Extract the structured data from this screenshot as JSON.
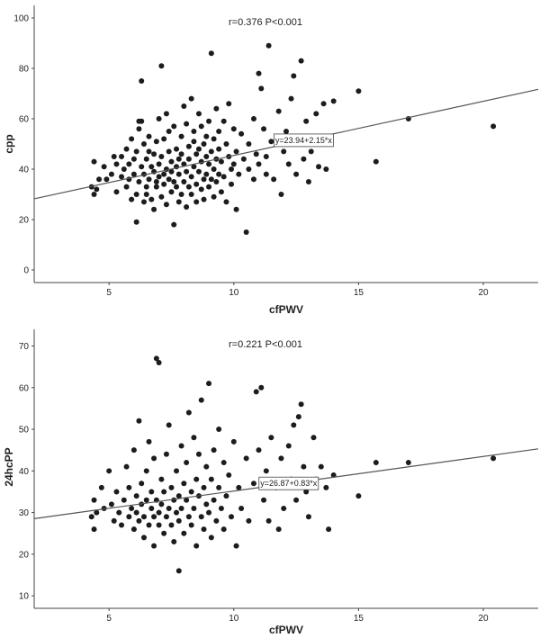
{
  "chart_data": [
    {
      "type": "scatter",
      "xlabel": "cfPWV",
      "ylabel": "cpp",
      "xlim": [
        2,
        22.2
      ],
      "ylim": [
        -5,
        105
      ],
      "xticks": [
        5,
        10,
        15,
        20
      ],
      "yticks": [
        0,
        20,
        40,
        60,
        80,
        100
      ],
      "grid": false,
      "annotation": "r=0.376 P<0.001",
      "regression": {
        "label": "y=23.94+2.15*x",
        "intercept": 23.94,
        "slope": 2.15,
        "label_at_x": 12.8
      },
      "points": [
        [
          4.3,
          33
        ],
        [
          4.4,
          43
        ],
        [
          4.4,
          30
        ],
        [
          4.5,
          32
        ],
        [
          4.6,
          36
        ],
        [
          4.8,
          41
        ],
        [
          4.9,
          36
        ],
        [
          5.1,
          38
        ],
        [
          5.2,
          45
        ],
        [
          5.3,
          31
        ],
        [
          5.3,
          42
        ],
        [
          5.5,
          37
        ],
        [
          5.5,
          45
        ],
        [
          5.6,
          40
        ],
        [
          5.7,
          33
        ],
        [
          5.7,
          48
        ],
        [
          5.8,
          36
        ],
        [
          5.8,
          42
        ],
        [
          5.9,
          28
        ],
        [
          5.9,
          52
        ],
        [
          6.0,
          38
        ],
        [
          6.0,
          44
        ],
        [
          6.1,
          19
        ],
        [
          6.1,
          30
        ],
        [
          6.1,
          47
        ],
        [
          6.2,
          56
        ],
        [
          6.2,
          59
        ],
        [
          6.2,
          35
        ],
        [
          6.3,
          75
        ],
        [
          6.3,
          41
        ],
        [
          6.3,
          59
        ],
        [
          6.4,
          27
        ],
        [
          6.4,
          38
        ],
        [
          6.4,
          50
        ],
        [
          6.5,
          33
        ],
        [
          6.5,
          44
        ],
        [
          6.5,
          30
        ],
        [
          6.6,
          47
        ],
        [
          6.6,
          36
        ],
        [
          6.6,
          53
        ],
        [
          6.7,
          41
        ],
        [
          6.7,
          28
        ],
        [
          6.8,
          39
        ],
        [
          6.8,
          24
        ],
        [
          6.8,
          46
        ],
        [
          6.9,
          35
        ],
        [
          6.9,
          51
        ],
        [
          6.9,
          33
        ],
        [
          7.0,
          42
        ],
        [
          7.0,
          60
        ],
        [
          7.0,
          37
        ],
        [
          7.1,
          81
        ],
        [
          7.1,
          45
        ],
        [
          7.1,
          29
        ],
        [
          7.2,
          38
        ],
        [
          7.2,
          52
        ],
        [
          7.2,
          34
        ],
        [
          7.3,
          62
        ],
        [
          7.3,
          40
        ],
        [
          7.3,
          26
        ],
        [
          7.4,
          47
        ],
        [
          7.4,
          36
        ],
        [
          7.4,
          55
        ],
        [
          7.5,
          31
        ],
        [
          7.5,
          43
        ],
        [
          7.5,
          39
        ],
        [
          7.6,
          18
        ],
        [
          7.6,
          57
        ],
        [
          7.6,
          35
        ],
        [
          7.7,
          48
        ],
        [
          7.7,
          33
        ],
        [
          7.7,
          41
        ],
        [
          7.8,
          27
        ],
        [
          7.8,
          44
        ],
        [
          7.8,
          38
        ],
        [
          7.9,
          53
        ],
        [
          7.9,
          30
        ],
        [
          7.9,
          46
        ],
        [
          8.0,
          65
        ],
        [
          8.0,
          35
        ],
        [
          8.0,
          42
        ],
        [
          8.1,
          58
        ],
        [
          8.1,
          25
        ],
        [
          8.1,
          39
        ],
        [
          8.2,
          49
        ],
        [
          8.2,
          33
        ],
        [
          8.2,
          44
        ],
        [
          8.3,
          68
        ],
        [
          8.3,
          37
        ],
        [
          8.3,
          30
        ],
        [
          8.4,
          51
        ],
        [
          8.4,
          41
        ],
        [
          8.4,
          55
        ],
        [
          8.5,
          34
        ],
        [
          8.5,
          46
        ],
        [
          8.5,
          27
        ],
        [
          8.6,
          62
        ],
        [
          8.6,
          39
        ],
        [
          8.6,
          48
        ],
        [
          8.7,
          32
        ],
        [
          8.7,
          43
        ],
        [
          8.7,
          57
        ],
        [
          8.8,
          36
        ],
        [
          8.8,
          50
        ],
        [
          8.8,
          28
        ],
        [
          8.9,
          45
        ],
        [
          8.9,
          38
        ],
        [
          8.9,
          53
        ],
        [
          9.0,
          59
        ],
        [
          9.0,
          33
        ],
        [
          9.0,
          42
        ],
        [
          9.1,
          86
        ],
        [
          9.1,
          47
        ],
        [
          9.1,
          36
        ],
        [
          9.2,
          52
        ],
        [
          9.2,
          29
        ],
        [
          9.2,
          40
        ],
        [
          9.3,
          64
        ],
        [
          9.3,
          44
        ],
        [
          9.3,
          35
        ],
        [
          9.4,
          55
        ],
        [
          9.4,
          38
        ],
        [
          9.4,
          48
        ],
        [
          9.5,
          31
        ],
        [
          9.5,
          43
        ],
        [
          9.6,
          59
        ],
        [
          9.6,
          37
        ],
        [
          9.7,
          50
        ],
        [
          9.7,
          27
        ],
        [
          9.8,
          45
        ],
        [
          9.8,
          66
        ],
        [
          9.9,
          40
        ],
        [
          9.9,
          34
        ],
        [
          10.0,
          56
        ],
        [
          10.0,
          42
        ],
        [
          10.1,
          24
        ],
        [
          10.1,
          47
        ],
        [
          10.2,
          38
        ],
        [
          10.3,
          54
        ],
        [
          10.4,
          44
        ],
        [
          10.5,
          15
        ],
        [
          10.6,
          40
        ],
        [
          10.6,
          50
        ],
        [
          10.8,
          36
        ],
        [
          10.8,
          60
        ],
        [
          10.9,
          46
        ],
        [
          11.0,
          78
        ],
        [
          11.0,
          42
        ],
        [
          11.1,
          72
        ],
        [
          11.2,
          56
        ],
        [
          11.3,
          45
        ],
        [
          11.3,
          38
        ],
        [
          11.4,
          89
        ],
        [
          11.5,
          51
        ],
        [
          11.6,
          36
        ],
        [
          11.8,
          63
        ],
        [
          11.9,
          30
        ],
        [
          12.0,
          47
        ],
        [
          12.1,
          55
        ],
        [
          12.2,
          42
        ],
        [
          12.3,
          68
        ],
        [
          12.4,
          77
        ],
        [
          12.5,
          38
        ],
        [
          12.6,
          52
        ],
        [
          12.7,
          83
        ],
        [
          12.8,
          44
        ],
        [
          12.9,
          59
        ],
        [
          13.0,
          35
        ],
        [
          13.1,
          47
        ],
        [
          13.3,
          62
        ],
        [
          13.4,
          41
        ],
        [
          13.6,
          66
        ],
        [
          13.7,
          40
        ],
        [
          13.8,
          52
        ],
        [
          14.0,
          67
        ],
        [
          15.0,
          71
        ],
        [
          15.7,
          43
        ],
        [
          17.0,
          60
        ],
        [
          20.4,
          57
        ]
      ]
    },
    {
      "type": "scatter",
      "xlabel": "cfPWV",
      "ylabel": "24hcPP",
      "xlim": [
        2,
        22.2
      ],
      "ylim": [
        7,
        74
      ],
      "xticks": [
        5,
        10,
        15,
        20
      ],
      "yticks": [
        10,
        20,
        30,
        40,
        50,
        60,
        70
      ],
      "grid": false,
      "annotation": "r=0.221 P<0.001",
      "regression": {
        "label": "y=26.87+0.83*x",
        "intercept": 26.87,
        "slope": 0.83,
        "label_at_x": 12.2
      },
      "points": [
        [
          4.3,
          29
        ],
        [
          4.4,
          26
        ],
        [
          4.4,
          33
        ],
        [
          4.5,
          30
        ],
        [
          4.7,
          36
        ],
        [
          4.8,
          31
        ],
        [
          5.0,
          40
        ],
        [
          5.1,
          32
        ],
        [
          5.2,
          28
        ],
        [
          5.3,
          35
        ],
        [
          5.4,
          30
        ],
        [
          5.5,
          27
        ],
        [
          5.6,
          33
        ],
        [
          5.7,
          41
        ],
        [
          5.8,
          29
        ],
        [
          5.8,
          36
        ],
        [
          5.9,
          31
        ],
        [
          6.0,
          45
        ],
        [
          6.0,
          26
        ],
        [
          6.1,
          34
        ],
        [
          6.1,
          30
        ],
        [
          6.2,
          52
        ],
        [
          6.2,
          28
        ],
        [
          6.3,
          37
        ],
        [
          6.3,
          32
        ],
        [
          6.4,
          24
        ],
        [
          6.4,
          29
        ],
        [
          6.5,
          40
        ],
        [
          6.5,
          33
        ],
        [
          6.6,
          27
        ],
        [
          6.6,
          47
        ],
        [
          6.7,
          31
        ],
        [
          6.7,
          35
        ],
        [
          6.8,
          22
        ],
        [
          6.8,
          29
        ],
        [
          6.8,
          43
        ],
        [
          6.9,
          67
        ],
        [
          6.9,
          33
        ],
        [
          7.0,
          66
        ],
        [
          7.0,
          30
        ],
        [
          7.0,
          27
        ],
        [
          7.1,
          38
        ],
        [
          7.1,
          32
        ],
        [
          7.2,
          25
        ],
        [
          7.2,
          35
        ],
        [
          7.3,
          29
        ],
        [
          7.3,
          44
        ],
        [
          7.4,
          31
        ],
        [
          7.4,
          51
        ],
        [
          7.5,
          27
        ],
        [
          7.5,
          36
        ],
        [
          7.6,
          33
        ],
        [
          7.6,
          23
        ],
        [
          7.7,
          40
        ],
        [
          7.7,
          30
        ],
        [
          7.8,
          16
        ],
        [
          7.8,
          34
        ],
        [
          7.8,
          28
        ],
        [
          7.9,
          46
        ],
        [
          7.9,
          31
        ],
        [
          8.0,
          37
        ],
        [
          8.0,
          25
        ],
        [
          8.1,
          33
        ],
        [
          8.1,
          42
        ],
        [
          8.2,
          29
        ],
        [
          8.2,
          54
        ],
        [
          8.3,
          35
        ],
        [
          8.3,
          27
        ],
        [
          8.4,
          48
        ],
        [
          8.4,
          31
        ],
        [
          8.5,
          38
        ],
        [
          8.5,
          22
        ],
        [
          8.6,
          34
        ],
        [
          8.6,
          44
        ],
        [
          8.7,
          29
        ],
        [
          8.7,
          57
        ],
        [
          8.8,
          36
        ],
        [
          8.8,
          26
        ],
        [
          8.9,
          41
        ],
        [
          8.9,
          32
        ],
        [
          9.0,
          61
        ],
        [
          9.0,
          30
        ],
        [
          9.1,
          38
        ],
        [
          9.1,
          24
        ],
        [
          9.2,
          45
        ],
        [
          9.2,
          33
        ],
        [
          9.3,
          28
        ],
        [
          9.4,
          50
        ],
        [
          9.4,
          36
        ],
        [
          9.5,
          31
        ],
        [
          9.6,
          42
        ],
        [
          9.6,
          26
        ],
        [
          9.7,
          34
        ],
        [
          9.8,
          39
        ],
        [
          9.9,
          29
        ],
        [
          10.0,
          47
        ],
        [
          10.1,
          22
        ],
        [
          10.2,
          36
        ],
        [
          10.3,
          31
        ],
        [
          10.5,
          43
        ],
        [
          10.6,
          28
        ],
        [
          10.8,
          37
        ],
        [
          10.9,
          59
        ],
        [
          11.0,
          45
        ],
        [
          11.1,
          60
        ],
        [
          11.2,
          33
        ],
        [
          11.3,
          40
        ],
        [
          11.4,
          28
        ],
        [
          11.5,
          48
        ],
        [
          11.7,
          36
        ],
        [
          11.8,
          26
        ],
        [
          11.9,
          43
        ],
        [
          12.0,
          31
        ],
        [
          12.2,
          46
        ],
        [
          12.3,
          38
        ],
        [
          12.4,
          51
        ],
        [
          12.5,
          33
        ],
        [
          12.6,
          53
        ],
        [
          12.7,
          56
        ],
        [
          12.8,
          41
        ],
        [
          12.9,
          35
        ],
        [
          13.0,
          29
        ],
        [
          13.2,
          48
        ],
        [
          13.3,
          38
        ],
        [
          13.5,
          41
        ],
        [
          13.7,
          36
        ],
        [
          13.8,
          26
        ],
        [
          14.0,
          39
        ],
        [
          15.0,
          34
        ],
        [
          15.7,
          42
        ],
        [
          17.0,
          42
        ],
        [
          20.4,
          43
        ]
      ]
    }
  ]
}
